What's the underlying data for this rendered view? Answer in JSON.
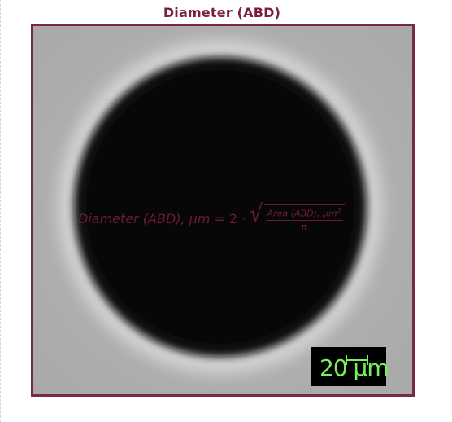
{
  "title": "Diameter (ABD)",
  "formula": {
    "lhs": "Diameter (ABD), μm",
    "equals": "=",
    "coefficient": "2",
    "operator": "·",
    "numerator": "Area (ABD), μm",
    "numerator_power": "2",
    "denominator": "π"
  },
  "scale_bar": {
    "label": "20 μm",
    "text_color": "#74f15c"
  },
  "colors": {
    "title": "#7a1f38",
    "frame_border": "#7a2a3e",
    "formula": "#6e1a2e",
    "particle": "#0b0b0b",
    "background": "#b3b3b3"
  }
}
